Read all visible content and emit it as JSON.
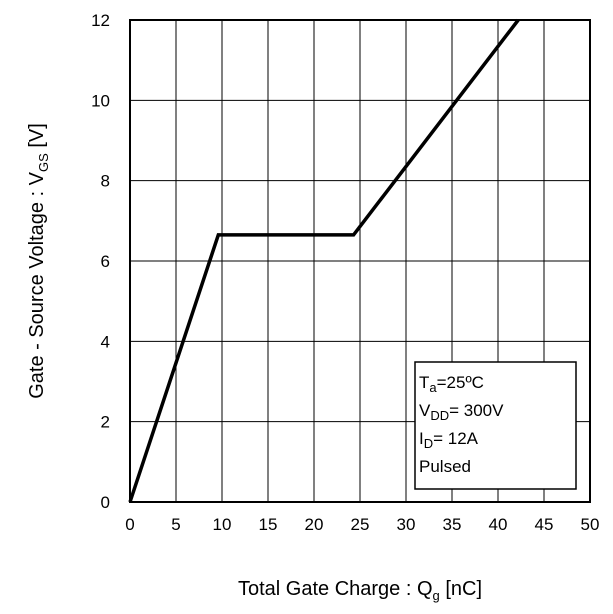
{
  "chart_data": {
    "type": "line",
    "x_ticks": [
      "0",
      "5",
      "10",
      "15",
      "20",
      "25",
      "30",
      "35",
      "40",
      "45",
      "50"
    ],
    "y_ticks": [
      "0",
      "2",
      "4",
      "6",
      "8",
      "10",
      "12"
    ],
    "xlim": [
      0,
      50
    ],
    "ylim": [
      0,
      12
    ],
    "x_grid_step": 5,
    "y_grid_step": 2,
    "grid": true,
    "series": [
      {
        "x": [
          0,
          9.6,
          24.3,
          42.2
        ],
        "y": [
          0,
          6.65,
          6.65,
          12.0
        ]
      }
    ],
    "xlabel": {
      "main": "Total Gate Charge : Q",
      "sub": "g",
      "unit": " [nC]"
    },
    "ylabel": {
      "main": "Gate - Source Voltage : V",
      "sub": "GS",
      "unit": " [V]"
    },
    "legend": {
      "placement": "bottom-right",
      "lines": [
        {
          "main": "T",
          "sub": "a",
          "rest": "=25ºC"
        },
        {
          "main": "V",
          "sub": "DD",
          "rest": "= 300V"
        },
        {
          "main": "I",
          "sub": "D",
          "rest": "= 12A"
        },
        {
          "main": "Pulsed",
          "sub": "",
          "rest": ""
        }
      ]
    }
  }
}
